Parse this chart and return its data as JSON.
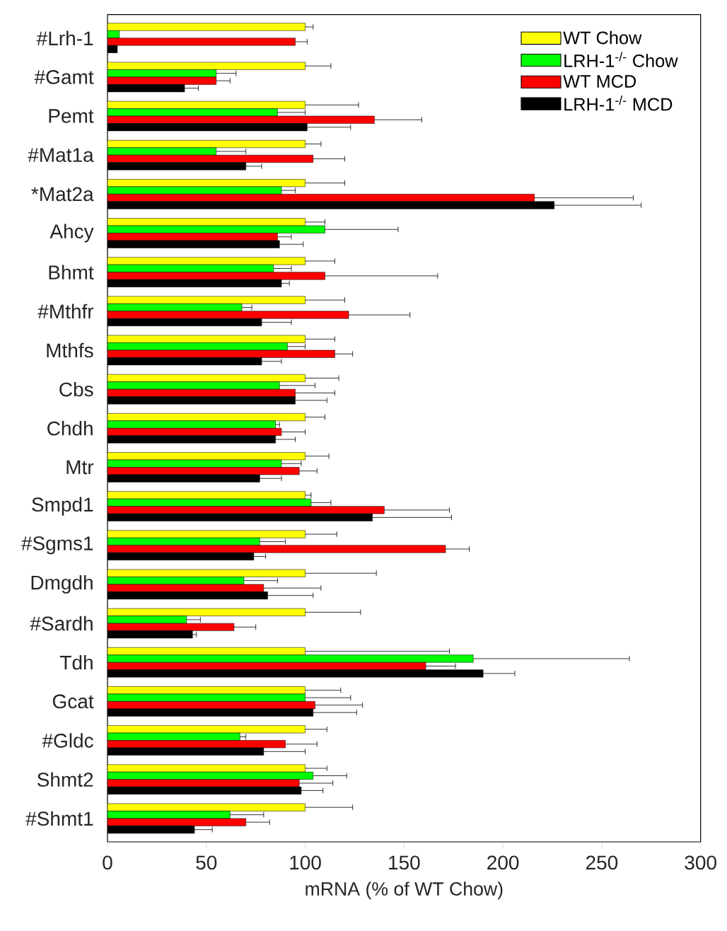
{
  "chart_data": {
    "type": "bar",
    "orientation": "horizontal",
    "xlabel": "mRNA (% of WT Chow)",
    "categories": [
      "#Lrh-1",
      "#Gamt",
      "Pemt",
      "#Mat1a",
      "*Mat2a",
      "Ahcy",
      "Bhmt",
      "#Mthfr",
      "Mthfs",
      "Cbs",
      "Chdh",
      "Mtr",
      "Smpd1",
      "#Sgms1",
      "Dmgdh",
      "#Sardh",
      "Tdh",
      "Gcat",
      "#Gldc",
      "Shmt2",
      "#Shmt1"
    ],
    "xlim": [
      0,
      300
    ],
    "xticks": [
      0,
      50,
      100,
      150,
      200,
      250,
      300
    ],
    "grid": false,
    "legend": "top right",
    "series": [
      {
        "name": "WT Chow",
        "color": "#ffff00",
        "values": [
          100,
          100,
          100,
          100,
          100,
          100,
          100,
          100,
          100,
          100,
          100,
          100,
          100,
          100,
          100,
          100,
          100,
          100,
          100,
          100,
          100
        ],
        "errors": [
          [
            100,
            104
          ],
          [
            100,
            113
          ],
          [
            100,
            127
          ],
          [
            100,
            108
          ],
          [
            100,
            120
          ],
          [
            100,
            110
          ],
          [
            100,
            115
          ],
          [
            100,
            120
          ],
          [
            100,
            115
          ],
          [
            100,
            117
          ],
          [
            100,
            110
          ],
          [
            100,
            112
          ],
          [
            100,
            103
          ],
          [
            100,
            116
          ],
          [
            100,
            136
          ],
          [
            100,
            128
          ],
          [
            100,
            173
          ],
          [
            100,
            118
          ],
          [
            100,
            111
          ],
          [
            100,
            111
          ],
          [
            100,
            124
          ]
        ]
      },
      {
        "name": "LRH-1$^{-/-}$ Chow",
        "color": "#00ff00",
        "values": [
          6,
          55,
          86,
          55,
          88,
          110,
          84,
          68,
          91,
          87,
          85,
          88,
          103,
          77,
          69,
          40,
          185,
          100,
          67,
          104,
          62
        ],
        "errors": [
          null,
          [
            55,
            65
          ],
          [
            86,
            100
          ],
          [
            55,
            70
          ],
          [
            88,
            95
          ],
          [
            110,
            147
          ],
          [
            84,
            93
          ],
          [
            68,
            73
          ],
          [
            91,
            100
          ],
          [
            87,
            105
          ],
          [
            85,
            87
          ],
          [
            88,
            98
          ],
          [
            103,
            113
          ],
          [
            77,
            90
          ],
          [
            69,
            86
          ],
          [
            40,
            47
          ],
          [
            185,
            264
          ],
          [
            100,
            123
          ],
          [
            67,
            70
          ],
          [
            104,
            121
          ],
          [
            62,
            79
          ]
        ]
      },
      {
        "name": "WT MCD",
        "color": "#ff0000",
        "values": [
          95,
          55,
          135,
          104,
          216,
          86,
          110,
          122,
          115,
          95,
          88,
          97,
          140,
          171,
          79,
          64,
          161,
          105,
          90,
          97,
          70
        ],
        "errors": [
          [
            95,
            101
          ],
          [
            55,
            62
          ],
          [
            135,
            159
          ],
          [
            104,
            120
          ],
          [
            216,
            266
          ],
          [
            86,
            93
          ],
          [
            110,
            167
          ],
          [
            122,
            153
          ],
          [
            115,
            124
          ],
          [
            95,
            115
          ],
          [
            88,
            100
          ],
          [
            97,
            106
          ],
          [
            140,
            173
          ],
          [
            171,
            183
          ],
          [
            79,
            108
          ],
          [
            64,
            75
          ],
          [
            161,
            176
          ],
          [
            105,
            129
          ],
          [
            90,
            106
          ],
          [
            97,
            114
          ],
          [
            70,
            82
          ]
        ]
      },
      {
        "name": "LRH-1$^{-/-}$ MCD",
        "color": "#000000",
        "values": [
          5,
          39,
          101,
          70,
          226,
          87,
          88,
          78,
          78,
          95,
          85,
          77,
          134,
          74,
          81,
          43,
          190,
          104,
          79,
          98,
          44
        ],
        "errors": [
          null,
          [
            39,
            46
          ],
          [
            101,
            123
          ],
          [
            70,
            78
          ],
          [
            226,
            270
          ],
          [
            87,
            99
          ],
          [
            88,
            92
          ],
          [
            78,
            93
          ],
          [
            78,
            88
          ],
          [
            95,
            111
          ],
          [
            85,
            95
          ],
          [
            77,
            88
          ],
          [
            134,
            174
          ],
          [
            74,
            80
          ],
          [
            81,
            104
          ],
          [
            43,
            45
          ],
          [
            190,
            206
          ],
          [
            104,
            126
          ],
          [
            79,
            100
          ],
          [
            98,
            109
          ],
          [
            44,
            53
          ]
        ]
      }
    ]
  }
}
